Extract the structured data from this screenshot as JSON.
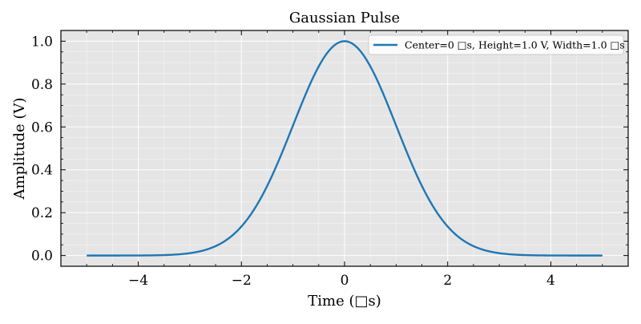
{
  "chart_data": {
    "type": "line",
    "title": "Gaussian Pulse",
    "xlabel": "Time (□s)",
    "ylabel": "Amplitude (V)",
    "xlim": [
      -5.5,
      5.5
    ],
    "ylim": [
      -0.05,
      1.05
    ],
    "xticks": [
      -4,
      -2,
      0,
      2,
      4
    ],
    "xtick_labels": [
      "−4",
      "−2",
      "0",
      "2",
      "4"
    ],
    "yticks": [
      0.0,
      0.2,
      0.4,
      0.6,
      0.8,
      1.0
    ],
    "ytick_labels": [
      "0.0",
      "0.2",
      "0.4",
      "0.6",
      "0.8",
      "1.0"
    ],
    "grid": true,
    "legend_position": "top-right",
    "series": [
      {
        "name": "Center=0 □s, Height=1.0 V, Width=1.0 □s",
        "color": "#1f77b4",
        "x": [
          -5.0,
          -4.5,
          -4.0,
          -3.5,
          -3.0,
          -2.75,
          -2.5,
          -2.25,
          -2.0,
          -1.75,
          -1.5,
          -1.25,
          -1.0,
          -0.75,
          -0.5,
          -0.25,
          0.0,
          0.25,
          0.5,
          0.75,
          1.0,
          1.25,
          1.5,
          1.75,
          2.0,
          2.25,
          2.5,
          2.75,
          3.0,
          3.5,
          4.0,
          4.5,
          5.0
        ],
        "y": [
          0.0,
          0.0,
          0.0,
          0.002,
          0.011,
          0.023,
          0.044,
          0.08,
          0.135,
          0.216,
          0.325,
          0.458,
          0.607,
          0.755,
          0.882,
          0.969,
          1.0,
          0.969,
          0.882,
          0.755,
          0.607,
          0.458,
          0.325,
          0.216,
          0.135,
          0.08,
          0.044,
          0.023,
          0.011,
          0.002,
          0.0,
          0.0,
          0.0
        ]
      }
    ]
  },
  "colors": {
    "plot_background": "#e5e5e5",
    "grid_major": "#ffffff",
    "axis": "#000000"
  }
}
